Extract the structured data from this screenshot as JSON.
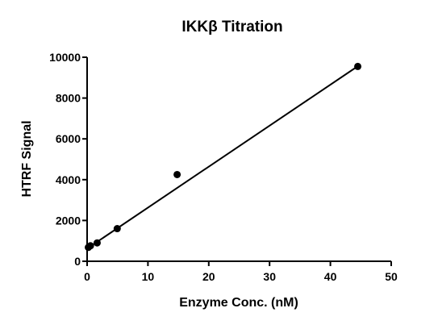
{
  "chart_data": {
    "type": "scatter",
    "title": "IKKβ  Titration",
    "xlabel": "Enzyme Conc. (nM)",
    "ylabel": "HTRF Signal",
    "xlim": [
      0,
      50
    ],
    "ylim": [
      0,
      10000
    ],
    "x_ticks": [
      "0",
      "10",
      "20",
      "30",
      "40",
      "50"
    ],
    "y_ticks": [
      "0",
      "2000",
      "4000",
      "6000",
      "8000",
      "10000"
    ],
    "grid": false,
    "legend": "none",
    "marker_color": "#000000",
    "series": [
      {
        "x": [
          0.2,
          0.55,
          1.65,
          4.95,
          14.8,
          44.5
        ],
        "y": [
          680,
          760,
          900,
          1600,
          4250,
          9550
        ]
      }
    ],
    "fit_line": {
      "x": [
        0,
        44.5
      ],
      "y": [
        620,
        9560
      ]
    }
  }
}
